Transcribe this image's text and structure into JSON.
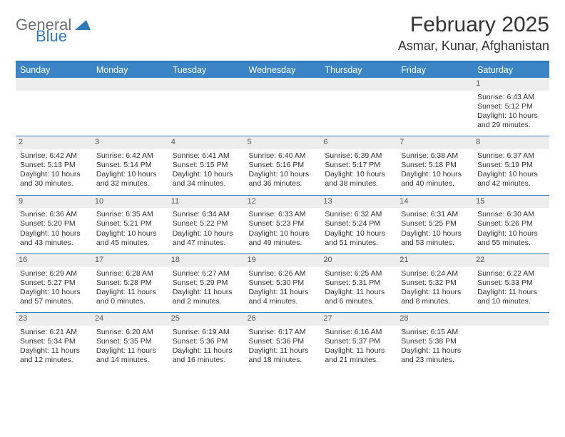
{
  "brand": {
    "word1": "General",
    "word2": "Blue",
    "accent_color": "#2f78b8",
    "gray": "#6b7074"
  },
  "title": "February 2025",
  "location": "Asmar, Kunar, Afghanistan",
  "colors": {
    "header_bg": "#3b85c6",
    "header_text": "#ffffff",
    "rule": "#2f78b8",
    "daynum_bg": "#ededed",
    "text": "#333333"
  },
  "weekdays": [
    "Sunday",
    "Monday",
    "Tuesday",
    "Wednesday",
    "Thursday",
    "Friday",
    "Saturday"
  ],
  "weeks": [
    [
      null,
      null,
      null,
      null,
      null,
      null,
      {
        "n": "1",
        "sunrise": "Sunrise: 6:43 AM",
        "sunset": "Sunset: 5:12 PM",
        "dl1": "Daylight: 10 hours",
        "dl2": "and 29 minutes."
      }
    ],
    [
      {
        "n": "2",
        "sunrise": "Sunrise: 6:42 AM",
        "sunset": "Sunset: 5:13 PM",
        "dl1": "Daylight: 10 hours",
        "dl2": "and 30 minutes."
      },
      {
        "n": "3",
        "sunrise": "Sunrise: 6:42 AM",
        "sunset": "Sunset: 5:14 PM",
        "dl1": "Daylight: 10 hours",
        "dl2": "and 32 minutes."
      },
      {
        "n": "4",
        "sunrise": "Sunrise: 6:41 AM",
        "sunset": "Sunset: 5:15 PM",
        "dl1": "Daylight: 10 hours",
        "dl2": "and 34 minutes."
      },
      {
        "n": "5",
        "sunrise": "Sunrise: 6:40 AM",
        "sunset": "Sunset: 5:16 PM",
        "dl1": "Daylight: 10 hours",
        "dl2": "and 36 minutes."
      },
      {
        "n": "6",
        "sunrise": "Sunrise: 6:39 AM",
        "sunset": "Sunset: 5:17 PM",
        "dl1": "Daylight: 10 hours",
        "dl2": "and 38 minutes."
      },
      {
        "n": "7",
        "sunrise": "Sunrise: 6:38 AM",
        "sunset": "Sunset: 5:18 PM",
        "dl1": "Daylight: 10 hours",
        "dl2": "and 40 minutes."
      },
      {
        "n": "8",
        "sunrise": "Sunrise: 6:37 AM",
        "sunset": "Sunset: 5:19 PM",
        "dl1": "Daylight: 10 hours",
        "dl2": "and 42 minutes."
      }
    ],
    [
      {
        "n": "9",
        "sunrise": "Sunrise: 6:36 AM",
        "sunset": "Sunset: 5:20 PM",
        "dl1": "Daylight: 10 hours",
        "dl2": "and 43 minutes."
      },
      {
        "n": "10",
        "sunrise": "Sunrise: 6:35 AM",
        "sunset": "Sunset: 5:21 PM",
        "dl1": "Daylight: 10 hours",
        "dl2": "and 45 minutes."
      },
      {
        "n": "11",
        "sunrise": "Sunrise: 6:34 AM",
        "sunset": "Sunset: 5:22 PM",
        "dl1": "Daylight: 10 hours",
        "dl2": "and 47 minutes."
      },
      {
        "n": "12",
        "sunrise": "Sunrise: 6:33 AM",
        "sunset": "Sunset: 5:23 PM",
        "dl1": "Daylight: 10 hours",
        "dl2": "and 49 minutes."
      },
      {
        "n": "13",
        "sunrise": "Sunrise: 6:32 AM",
        "sunset": "Sunset: 5:24 PM",
        "dl1": "Daylight: 10 hours",
        "dl2": "and 51 minutes."
      },
      {
        "n": "14",
        "sunrise": "Sunrise: 6:31 AM",
        "sunset": "Sunset: 5:25 PM",
        "dl1": "Daylight: 10 hours",
        "dl2": "and 53 minutes."
      },
      {
        "n": "15",
        "sunrise": "Sunrise: 6:30 AM",
        "sunset": "Sunset: 5:26 PM",
        "dl1": "Daylight: 10 hours",
        "dl2": "and 55 minutes."
      }
    ],
    [
      {
        "n": "16",
        "sunrise": "Sunrise: 6:29 AM",
        "sunset": "Sunset: 5:27 PM",
        "dl1": "Daylight: 10 hours",
        "dl2": "and 57 minutes."
      },
      {
        "n": "17",
        "sunrise": "Sunrise: 6:28 AM",
        "sunset": "Sunset: 5:28 PM",
        "dl1": "Daylight: 11 hours",
        "dl2": "and 0 minutes."
      },
      {
        "n": "18",
        "sunrise": "Sunrise: 6:27 AM",
        "sunset": "Sunset: 5:29 PM",
        "dl1": "Daylight: 11 hours",
        "dl2": "and 2 minutes."
      },
      {
        "n": "19",
        "sunrise": "Sunrise: 6:26 AM",
        "sunset": "Sunset: 5:30 PM",
        "dl1": "Daylight: 11 hours",
        "dl2": "and 4 minutes."
      },
      {
        "n": "20",
        "sunrise": "Sunrise: 6:25 AM",
        "sunset": "Sunset: 5:31 PM",
        "dl1": "Daylight: 11 hours",
        "dl2": "and 6 minutes."
      },
      {
        "n": "21",
        "sunrise": "Sunrise: 6:24 AM",
        "sunset": "Sunset: 5:32 PM",
        "dl1": "Daylight: 11 hours",
        "dl2": "and 8 minutes."
      },
      {
        "n": "22",
        "sunrise": "Sunrise: 6:22 AM",
        "sunset": "Sunset: 5:33 PM",
        "dl1": "Daylight: 11 hours",
        "dl2": "and 10 minutes."
      }
    ],
    [
      {
        "n": "23",
        "sunrise": "Sunrise: 6:21 AM",
        "sunset": "Sunset: 5:34 PM",
        "dl1": "Daylight: 11 hours",
        "dl2": "and 12 minutes."
      },
      {
        "n": "24",
        "sunrise": "Sunrise: 6:20 AM",
        "sunset": "Sunset: 5:35 PM",
        "dl1": "Daylight: 11 hours",
        "dl2": "and 14 minutes."
      },
      {
        "n": "25",
        "sunrise": "Sunrise: 6:19 AM",
        "sunset": "Sunset: 5:36 PM",
        "dl1": "Daylight: 11 hours",
        "dl2": "and 16 minutes."
      },
      {
        "n": "26",
        "sunrise": "Sunrise: 6:17 AM",
        "sunset": "Sunset: 5:36 PM",
        "dl1": "Daylight: 11 hours",
        "dl2": "and 18 minutes."
      },
      {
        "n": "27",
        "sunrise": "Sunrise: 6:16 AM",
        "sunset": "Sunset: 5:37 PM",
        "dl1": "Daylight: 11 hours",
        "dl2": "and 21 minutes."
      },
      {
        "n": "28",
        "sunrise": "Sunrise: 6:15 AM",
        "sunset": "Sunset: 5:38 PM",
        "dl1": "Daylight: 11 hours",
        "dl2": "and 23 minutes."
      },
      null
    ]
  ]
}
